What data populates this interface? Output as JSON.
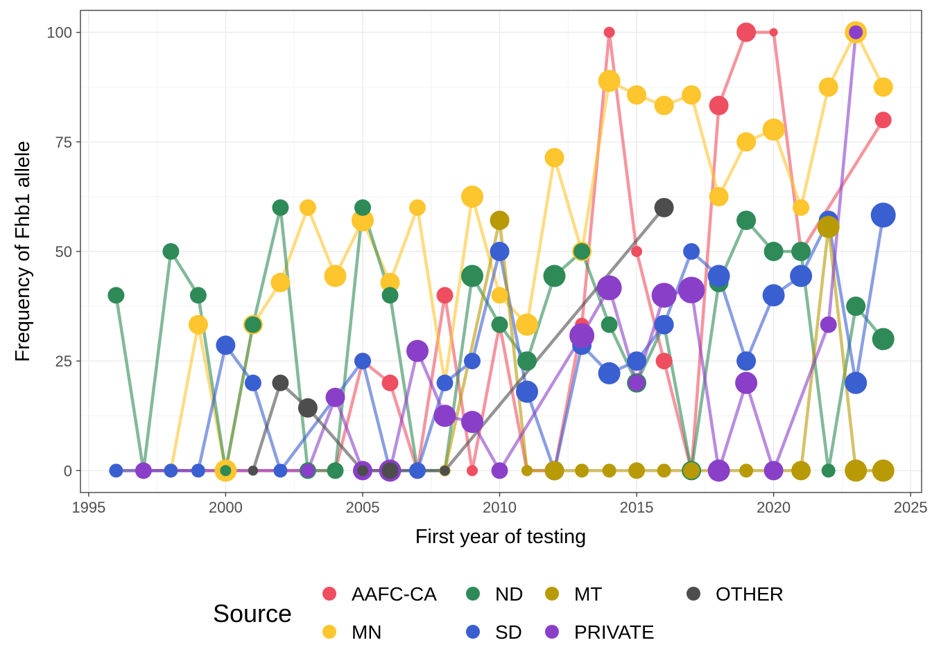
{
  "chart_data": {
    "type": "line",
    "title": "",
    "xlabel": "First year of testing",
    "ylabel": "Frequency of Fhb1 allele",
    "xlim": [
      1994.7,
      2025.4
    ],
    "ylim": [
      -5,
      105
    ],
    "x_ticks": [
      1995,
      2000,
      2005,
      2010,
      2015,
      2020,
      2025
    ],
    "y_ticks": [
      0,
      25,
      50,
      75,
      100
    ],
    "x_tick_labels": [
      "1995",
      "2000",
      "2005",
      "2010",
      "2015",
      "2020",
      "2025"
    ],
    "y_tick_labels": [
      "0",
      "25",
      "50",
      "75",
      "100"
    ],
    "grid": true,
    "legend_title": "Source",
    "legend_position": "bottom",
    "series": [
      {
        "name": "AAFC-CA",
        "color": "#ee4e5f",
        "points": [
          [
            1996,
            0,
            1
          ],
          [
            1997,
            0,
            1
          ],
          [
            2004,
            0,
            1
          ],
          [
            2005,
            25,
            2
          ],
          [
            2006,
            20,
            2
          ],
          [
            2007,
            0,
            1
          ],
          [
            2008,
            40,
            2
          ],
          [
            2009,
            0,
            1
          ],
          [
            2010,
            33.3,
            1.5
          ],
          [
            2011,
            0,
            1
          ],
          [
            2012,
            0,
            1
          ],
          [
            2013,
            33.3,
            1.5
          ],
          [
            2014,
            100,
            1
          ],
          [
            2015,
            50,
            1
          ],
          [
            2016,
            25,
            2
          ],
          [
            2017,
            0,
            2
          ],
          [
            2018,
            83.3,
            2.5
          ],
          [
            2019,
            100,
            2.5
          ],
          [
            2020,
            100,
            0.5
          ],
          [
            2021,
            50,
            2
          ],
          [
            2024,
            80,
            2
          ]
        ]
      },
      {
        "name": "MN",
        "color": "#fdc52e",
        "points": [
          [
            1998,
            0,
            1.5
          ],
          [
            1999,
            33.3,
            2.5
          ],
          [
            2000,
            0,
            3
          ],
          [
            2001,
            33.3,
            2.5
          ],
          [
            2002,
            42.9,
            2.5
          ],
          [
            2003,
            60,
            2
          ],
          [
            2004,
            44.4,
            3
          ],
          [
            2005,
            57.1,
            3
          ],
          [
            2006,
            42.9,
            2.5
          ],
          [
            2007,
            60,
            2
          ],
          [
            2008,
            20,
            1
          ],
          [
            2009,
            62.5,
            3
          ],
          [
            2010,
            40,
            2
          ],
          [
            2011,
            33.3,
            3
          ],
          [
            2012,
            71.4,
            2.5
          ],
          [
            2013,
            50,
            2.5
          ],
          [
            2014,
            88.9,
            3
          ],
          [
            2015,
            85.7,
            2.5
          ],
          [
            2016,
            83.3,
            2.5
          ],
          [
            2017,
            85.7,
            2.5
          ],
          [
            2018,
            62.5,
            2.5
          ],
          [
            2019,
            75,
            2.5
          ],
          [
            2020,
            77.8,
            3
          ],
          [
            2021,
            60,
            2
          ],
          [
            2022,
            87.5,
            2.5
          ],
          [
            2023,
            100,
            3
          ],
          [
            2024,
            87.5,
            2.5
          ]
        ]
      },
      {
        "name": "ND",
        "color": "#2e8a57",
        "points": [
          [
            1996,
            40,
            2
          ],
          [
            1997,
            0,
            1
          ],
          [
            1998,
            50,
            2
          ],
          [
            1999,
            40,
            2
          ],
          [
            2000,
            0,
            1
          ],
          [
            2001,
            33.3,
            2
          ],
          [
            2002,
            60,
            2
          ],
          [
            2003,
            0,
            2
          ],
          [
            2004,
            0,
            2
          ],
          [
            2005,
            60,
            2
          ],
          [
            2006,
            40,
            2
          ],
          [
            2007,
            0,
            1
          ],
          [
            2008,
            0,
            1
          ],
          [
            2009,
            44.4,
            3
          ],
          [
            2010,
            33.3,
            2
          ],
          [
            2011,
            25,
            2.5
          ],
          [
            2012,
            44.4,
            3
          ],
          [
            2013,
            50,
            2
          ],
          [
            2014,
            33.3,
            2
          ],
          [
            2015,
            20,
            2.5
          ],
          [
            2016,
            33.3,
            2.5
          ],
          [
            2017,
            0,
            2.5
          ],
          [
            2018,
            42.9,
            2.5
          ],
          [
            2019,
            57.1,
            2.5
          ],
          [
            2020,
            50,
            2.5
          ],
          [
            2021,
            50,
            2.5
          ],
          [
            2022,
            0,
            1.5
          ],
          [
            2023,
            37.5,
            2.5
          ],
          [
            2024,
            30,
            3
          ]
        ]
      },
      {
        "name": "SD",
        "color": "#3a5fd1",
        "points": [
          [
            1996,
            0,
            1.5
          ],
          [
            1998,
            0,
            1.5
          ],
          [
            1999,
            0,
            1.5
          ],
          [
            2000,
            28.6,
            2.5
          ],
          [
            2001,
            20,
            2
          ],
          [
            2002,
            0,
            1.5
          ],
          [
            2005,
            25,
            2
          ],
          [
            2006,
            0,
            2
          ],
          [
            2007,
            0,
            2
          ],
          [
            2008,
            20,
            2
          ],
          [
            2009,
            25,
            2
          ],
          [
            2010,
            50,
            2.5
          ],
          [
            2011,
            18,
            3
          ],
          [
            2012,
            0,
            2.5
          ],
          [
            2013,
            28.6,
            2.5
          ],
          [
            2014,
            22.2,
            3
          ],
          [
            2015,
            25,
            2.5
          ],
          [
            2016,
            33.3,
            2.5
          ],
          [
            2017,
            50,
            2
          ],
          [
            2018,
            44.4,
            3
          ],
          [
            2019,
            25,
            2.5
          ],
          [
            2020,
            40,
            3
          ],
          [
            2021,
            44.4,
            3
          ],
          [
            2022,
            57.1,
            2.5
          ],
          [
            2023,
            20,
            3
          ],
          [
            2024,
            58.3,
            3.5
          ]
        ]
      },
      {
        "name": "MT",
        "color": "#b79a06",
        "points": [
          [
            2008,
            0,
            1
          ],
          [
            2010,
            57.1,
            2.5
          ],
          [
            2011,
            0,
            1
          ],
          [
            2012,
            0,
            2.5
          ],
          [
            2013,
            0,
            1.5
          ],
          [
            2014,
            0,
            1.5
          ],
          [
            2015,
            0,
            2
          ],
          [
            2016,
            0,
            1.5
          ],
          [
            2017,
            0,
            2
          ],
          [
            2018,
            0,
            2
          ],
          [
            2019,
            0,
            1.5
          ],
          [
            2020,
            0,
            2
          ],
          [
            2021,
            0,
            2.5
          ],
          [
            2022,
            55.6,
            3
          ],
          [
            2023,
            0,
            3
          ],
          [
            2024,
            0,
            3
          ]
        ]
      },
      {
        "name": "PRIVATE",
        "color": "#8a3fc9",
        "points": [
          [
            1997,
            0,
            2
          ],
          [
            2003,
            0,
            1.5
          ],
          [
            2004,
            16.7,
            2.5
          ],
          [
            2005,
            0,
            2.5
          ],
          [
            2006,
            0,
            3
          ],
          [
            2007,
            27.3,
            3
          ],
          [
            2008,
            12.5,
            3
          ],
          [
            2009,
            11.1,
            3
          ],
          [
            2010,
            0,
            2
          ],
          [
            2013,
            30.8,
            3.5
          ],
          [
            2014,
            41.7,
            3.5
          ],
          [
            2015,
            20,
            2
          ],
          [
            2016,
            40,
            3.5
          ],
          [
            2017,
            41.2,
            3.8
          ],
          [
            2018,
            0,
            3
          ],
          [
            2019,
            20,
            3
          ],
          [
            2020,
            0,
            2.5
          ],
          [
            2022,
            33.3,
            2
          ],
          [
            2023,
            100,
            1.5
          ]
        ]
      },
      {
        "name": "OTHER",
        "color": "#4d4d4d",
        "points": [
          [
            2001,
            0,
            0.8
          ],
          [
            2002,
            20,
            2
          ],
          [
            2003,
            14.3,
            2.5
          ],
          [
            2005,
            0,
            1
          ],
          [
            2006,
            0,
            2
          ],
          [
            2008,
            0,
            0.8
          ],
          [
            2016,
            60,
            2.5
          ]
        ]
      }
    ]
  }
}
